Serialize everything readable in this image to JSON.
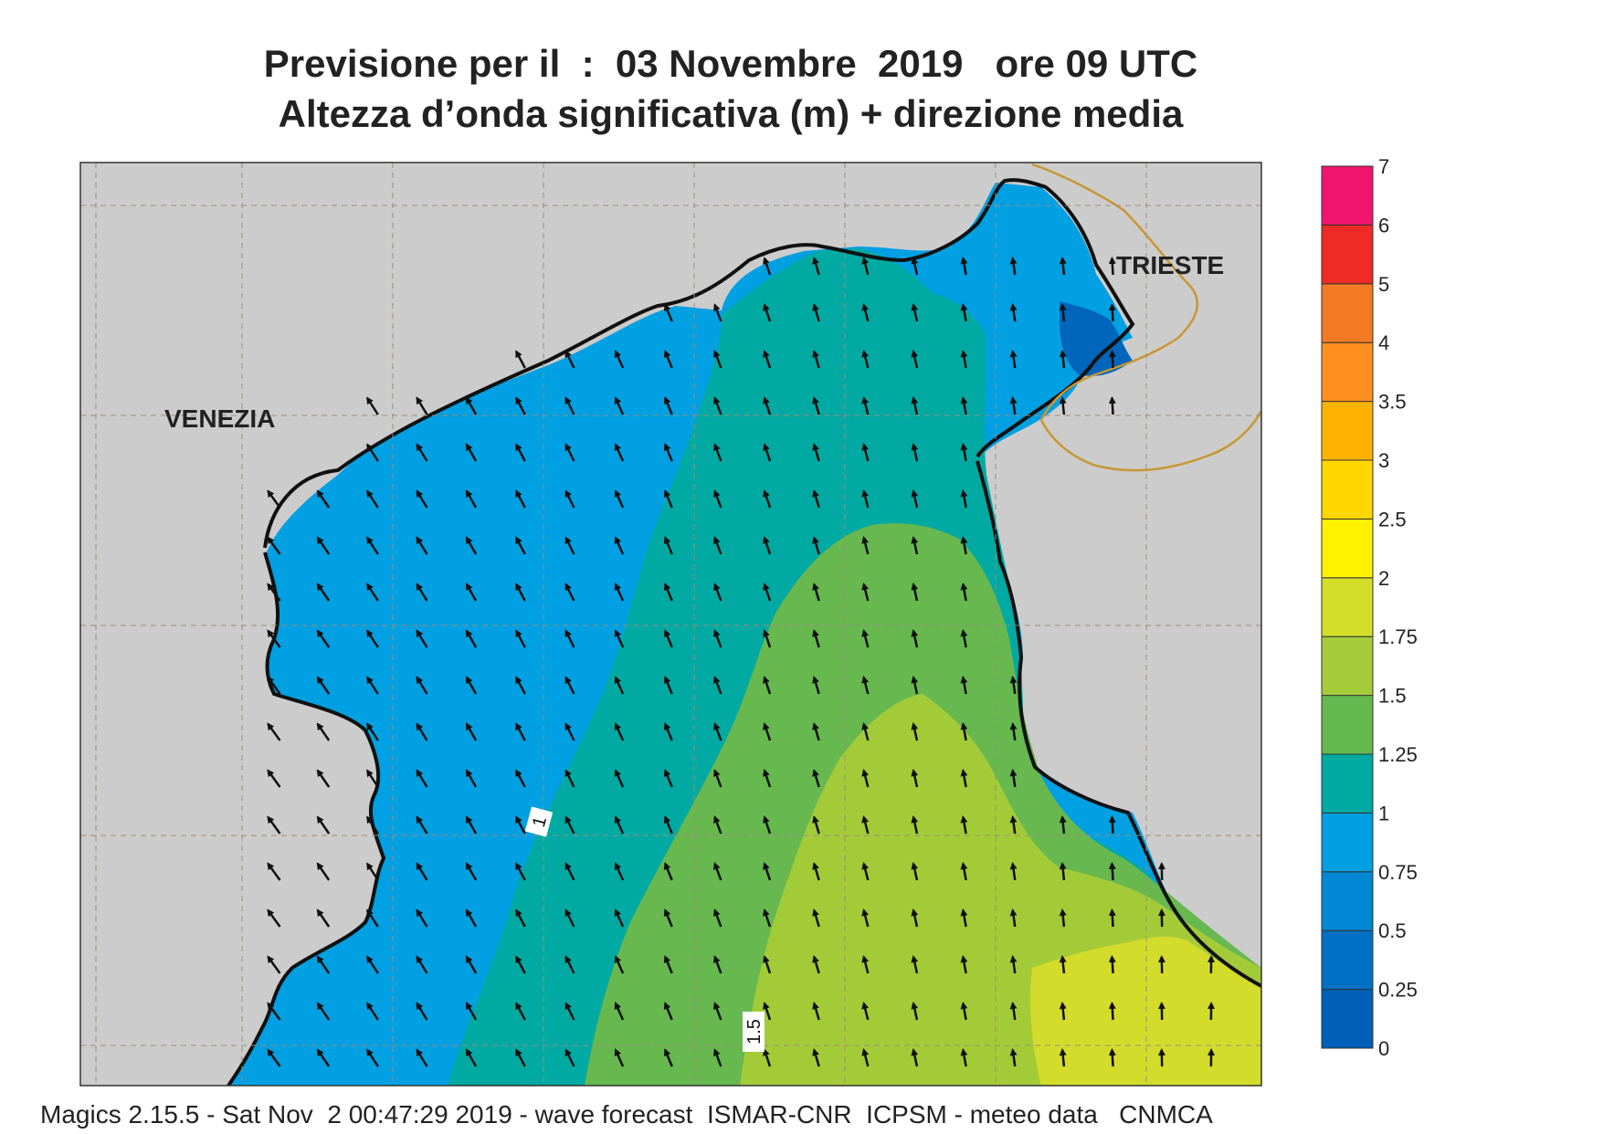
{
  "title": {
    "line1": "Previsione per il  :  03 Novembre  2019   ore 09 UTC",
    "line2": "Altezza d’onda significativa (m) + direzione media"
  },
  "map": {
    "cities": [
      {
        "name": "VENEZIA"
      },
      {
        "name": "TRIESTE"
      }
    ],
    "contour_labels": [
      "1",
      "1.5"
    ],
    "colors": {
      "land": "#cccccc",
      "sea_0_25": "#0066bb",
      "sea_25_05": "#0077c8",
      "sea_05_075": "#008ed8",
      "sea_075_1": "#00a0e2",
      "sea_1_125": "#00aaa2",
      "sea_125_15": "#66b84f",
      "sea_15_175": "#a3cb38",
      "sea_175_2": "#d3dc2a",
      "coast": "#111111",
      "border": "#c89632",
      "grid": "#9b8c7c"
    }
  },
  "legend": {
    "title": "",
    "units": "m",
    "labels": [
      "0",
      "0.25",
      "0.5",
      "0.75",
      "1",
      "1.25",
      "1.5",
      "1.75",
      "2",
      "2.5",
      "3",
      "3.5",
      "4",
      "5",
      "6",
      "7"
    ],
    "colors": [
      "#0060b8",
      "#0070c4",
      "#0088d4",
      "#00a0e2",
      "#00aaa2",
      "#64b84e",
      "#a4cc3a",
      "#d4de28",
      "#fff200",
      "#ffd700",
      "#ffb300",
      "#ff9020",
      "#f57a24",
      "#ee2b24",
      "#f0146c"
    ]
  },
  "footer": {
    "text": "Magics 2.15.5 - Sat Nov  2 00:47:29 2019 - wave forecast  ISMAR-CNR  ICPSM - meteo data   CNMCA"
  }
}
